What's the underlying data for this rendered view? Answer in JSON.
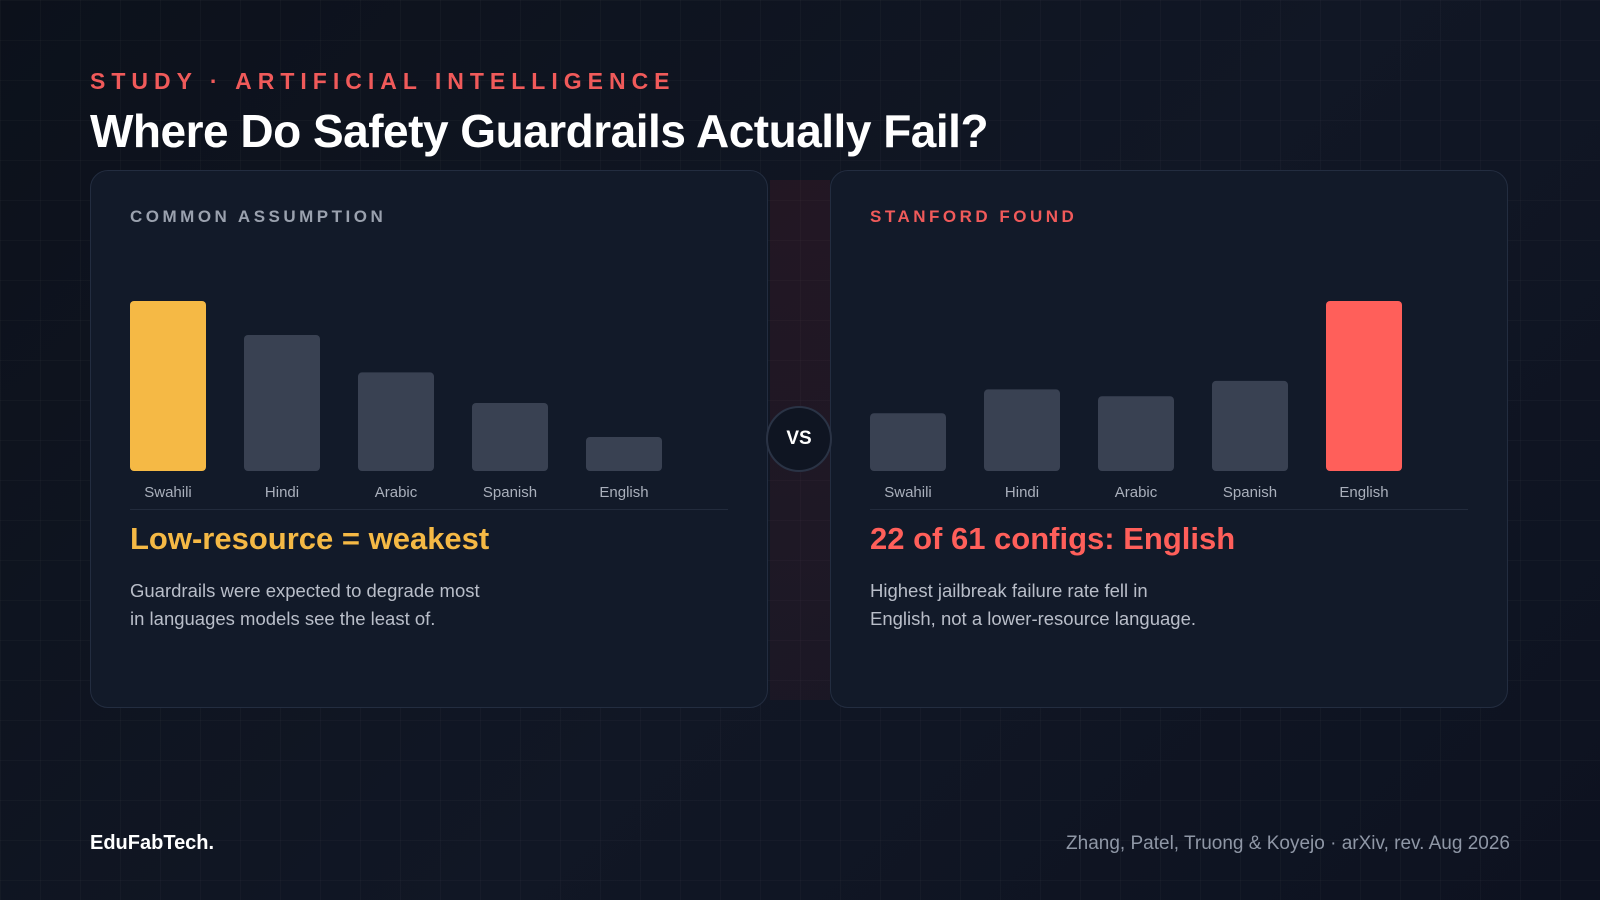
{
  "header": {
    "eyebrow": "STUDY · ARTIFICIAL INTELLIGENCE",
    "title": "Where Do Safety Guardrails Actually Fail?"
  },
  "vs_label": "VS",
  "panels": {
    "left": {
      "label": "COMMON ASSUMPTION",
      "headline": "Low-resource = weakest",
      "body_line1": "Guardrails were expected to degrade most",
      "body_line2": "in languages models see the least of."
    },
    "right": {
      "label": "STANFORD FOUND",
      "headline": "22 of 61 configs: English",
      "body_line1": "Highest jailbreak failure rate fell in",
      "body_line2": "English, not a lower-resource language."
    }
  },
  "footer": {
    "brand": "EduFabTech.",
    "citation": "Zhang, Patel, Truong & Koyejo · arXiv, rev. Aug 2026"
  },
  "colors": {
    "assumption_accent": "#f5b945",
    "finding_accent": "#ff5f5a",
    "muted_bar": "#394152"
  },
  "chart_data": [
    {
      "type": "bar",
      "title": "COMMON ASSUMPTION",
      "categories": [
        "Swahili",
        "Hindi",
        "Arabic",
        "Spanish",
        "English"
      ],
      "values": [
        100,
        80,
        58,
        40,
        20
      ],
      "highlight_index": 0,
      "highlight_color": "#f5b945",
      "bar_color": "#394152",
      "ylim": [
        0,
        100
      ],
      "grid": false,
      "axis_values_shown": false
    },
    {
      "type": "bar",
      "title": "STANFORD FOUND",
      "categories": [
        "Swahili",
        "Hindi",
        "Arabic",
        "Spanish",
        "English"
      ],
      "values": [
        34,
        48,
        44,
        53,
        100
      ],
      "highlight_index": 4,
      "highlight_color": "#ff5f5a",
      "bar_color": "#394152",
      "ylim": [
        0,
        100
      ],
      "grid": false,
      "axis_values_shown": false
    }
  ]
}
